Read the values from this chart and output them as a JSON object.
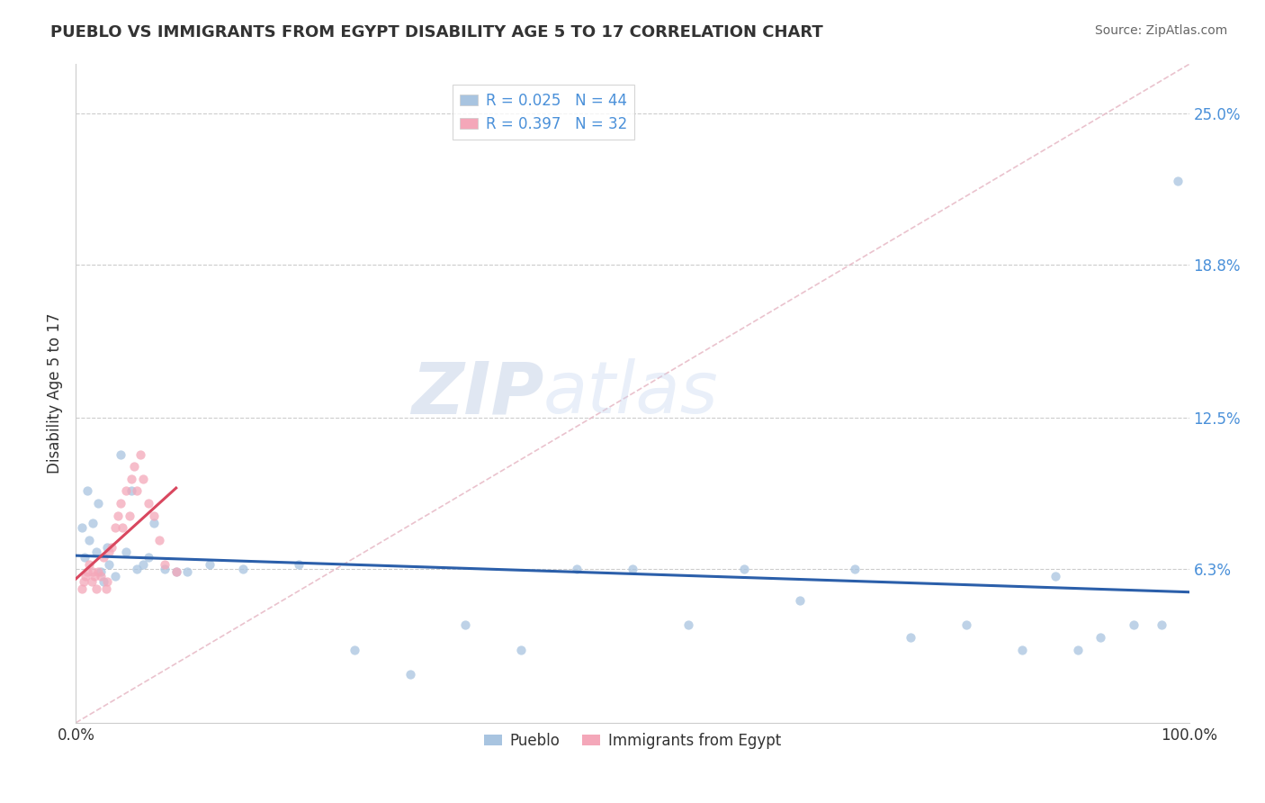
{
  "title": "PUEBLO VS IMMIGRANTS FROM EGYPT DISABILITY AGE 5 TO 17 CORRELATION CHART",
  "source": "Source: ZipAtlas.com",
  "ylabel": "Disability Age 5 to 17",
  "xlim": [
    0.0,
    1.0
  ],
  "ylim": [
    0.0,
    0.27
  ],
  "yticks": [
    0.063,
    0.125,
    0.188,
    0.25
  ],
  "ytick_labels": [
    "6.3%",
    "12.5%",
    "18.8%",
    "25.0%"
  ],
  "xtick_labels": [
    "0.0%",
    "100.0%"
  ],
  "legend_labels": [
    "Pueblo",
    "Immigrants from Egypt"
  ],
  "R_pueblo": 0.025,
  "N_pueblo": 44,
  "R_egypt": 0.397,
  "N_egypt": 32,
  "pueblo_color": "#a8c4e0",
  "egypt_color": "#f4a7b9",
  "pueblo_line_color": "#2b5faa",
  "egypt_line_color": "#d9475f",
  "diag_line_color": "#e8bcc8",
  "watermark_zip": "ZIP",
  "watermark_atlas": "atlas",
  "pueblo_x": [
    0.005,
    0.008,
    0.01,
    0.012,
    0.015,
    0.018,
    0.02,
    0.022,
    0.025,
    0.028,
    0.03,
    0.035,
    0.04,
    0.045,
    0.05,
    0.055,
    0.06,
    0.065,
    0.07,
    0.08,
    0.09,
    0.1,
    0.12,
    0.15,
    0.2,
    0.25,
    0.3,
    0.35,
    0.4,
    0.45,
    0.5,
    0.55,
    0.6,
    0.65,
    0.7,
    0.75,
    0.8,
    0.85,
    0.88,
    0.9,
    0.92,
    0.95,
    0.975,
    0.99
  ],
  "pueblo_y": [
    0.08,
    0.068,
    0.095,
    0.075,
    0.082,
    0.07,
    0.09,
    0.062,
    0.058,
    0.072,
    0.065,
    0.06,
    0.11,
    0.07,
    0.095,
    0.063,
    0.065,
    0.068,
    0.082,
    0.063,
    0.062,
    0.062,
    0.065,
    0.063,
    0.065,
    0.03,
    0.02,
    0.04,
    0.03,
    0.063,
    0.063,
    0.04,
    0.063,
    0.05,
    0.063,
    0.035,
    0.04,
    0.03,
    0.06,
    0.03,
    0.035,
    0.04,
    0.04,
    0.222
  ],
  "egypt_x": [
    0.005,
    0.007,
    0.009,
    0.01,
    0.012,
    0.014,
    0.015,
    0.017,
    0.018,
    0.02,
    0.022,
    0.025,
    0.027,
    0.028,
    0.03,
    0.032,
    0.035,
    0.038,
    0.04,
    0.042,
    0.045,
    0.048,
    0.05,
    0.052,
    0.055,
    0.058,
    0.06,
    0.065,
    0.07,
    0.075,
    0.08,
    0.09
  ],
  "egypt_y": [
    0.055,
    0.058,
    0.06,
    0.062,
    0.065,
    0.058,
    0.062,
    0.06,
    0.055,
    0.062,
    0.06,
    0.068,
    0.055,
    0.058,
    0.07,
    0.072,
    0.08,
    0.085,
    0.09,
    0.08,
    0.095,
    0.085,
    0.1,
    0.105,
    0.095,
    0.11,
    0.1,
    0.09,
    0.085,
    0.075,
    0.065,
    0.062
  ]
}
